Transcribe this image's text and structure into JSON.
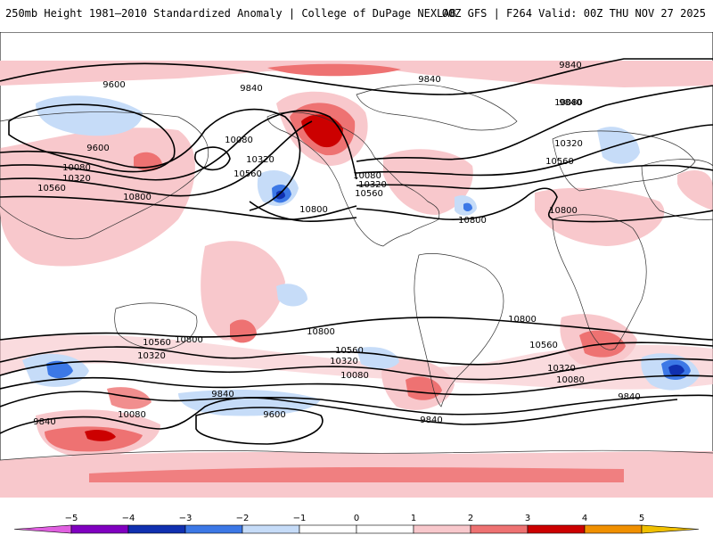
{
  "header": {
    "left_title": "250mb Height 1981–2010 Standardized Anomaly | College of DuPage NEXLAB",
    "right_title": "00Z GFS | F264 Valid: 00Z THU NOV 27 2025"
  },
  "colorbar": {
    "ticks": [
      "−5",
      "−4",
      "−3",
      "−2",
      "−1",
      "0",
      "1",
      "2",
      "3",
      "4",
      "5"
    ],
    "colors": [
      "#e060e0",
      "#8000c0",
      "#1030b0",
      "#3c78e6",
      "#c6dcf8",
      "#ffffff",
      "#ffffff",
      "#f8c8cc",
      "#ee7272",
      "#cc0000",
      "#f09000",
      "#f0c000"
    ]
  },
  "contours": {
    "labels": [
      {
        "id": "c9600-np",
        "text": "9600"
      },
      {
        "id": "c9840-npw",
        "text": "9840"
      },
      {
        "id": "c9840-np",
        "text": "9840"
      },
      {
        "id": "c9840-npe",
        "text": "9840"
      },
      {
        "id": "c9840-ne",
        "text": "9840"
      },
      {
        "id": "c9600-w",
        "text": "9600"
      },
      {
        "id": "c10080-w",
        "text": "10080"
      },
      {
        "id": "c10320-w",
        "text": "10320"
      },
      {
        "id": "c10560-w",
        "text": "10560"
      },
      {
        "id": "c10800-w",
        "text": "10800"
      },
      {
        "id": "c10080-pac",
        "text": "10080"
      },
      {
        "id": "c10320-pac",
        "text": "10320"
      },
      {
        "id": "c10560-pac",
        "text": "10560"
      },
      {
        "id": "c10800-pac",
        "text": "10800"
      },
      {
        "id": "c10080-us",
        "text": "10080"
      },
      {
        "id": "c10320-us",
        "text": "10320"
      },
      {
        "id": "c10560-us",
        "text": "10560"
      },
      {
        "id": "c10800-atl",
        "text": "10800"
      },
      {
        "id": "c10080-eu",
        "text": "10080"
      },
      {
        "id": "c10320-eu",
        "text": "10320"
      },
      {
        "id": "c10560-eu",
        "text": "10560"
      },
      {
        "id": "c10800-eu",
        "text": "10800"
      },
      {
        "id": "c10800-sw",
        "text": "10800"
      },
      {
        "id": "c10560-sw",
        "text": "10560"
      },
      {
        "id": "c10320-sw",
        "text": "10320"
      },
      {
        "id": "c10080-sw",
        "text": "10080"
      },
      {
        "id": "c9840-sw",
        "text": "9840"
      },
      {
        "id": "c9840-swf",
        "text": "9840"
      },
      {
        "id": "c9600-s",
        "text": "9600"
      },
      {
        "id": "c10800-sp",
        "text": "10800"
      },
      {
        "id": "c10560-sp",
        "text": "10560"
      },
      {
        "id": "c10320-sp",
        "text": "10320"
      },
      {
        "id": "c10080-sp",
        "text": "10080"
      },
      {
        "id": "c9840-sp",
        "text": "9840"
      },
      {
        "id": "c10800-sa",
        "text": "10800"
      },
      {
        "id": "c10560-sa",
        "text": "10560"
      },
      {
        "id": "c10320-sa",
        "text": "10320"
      },
      {
        "id": "c10080-sa",
        "text": "10080"
      },
      {
        "id": "c9840-sa",
        "text": "9840"
      }
    ]
  }
}
